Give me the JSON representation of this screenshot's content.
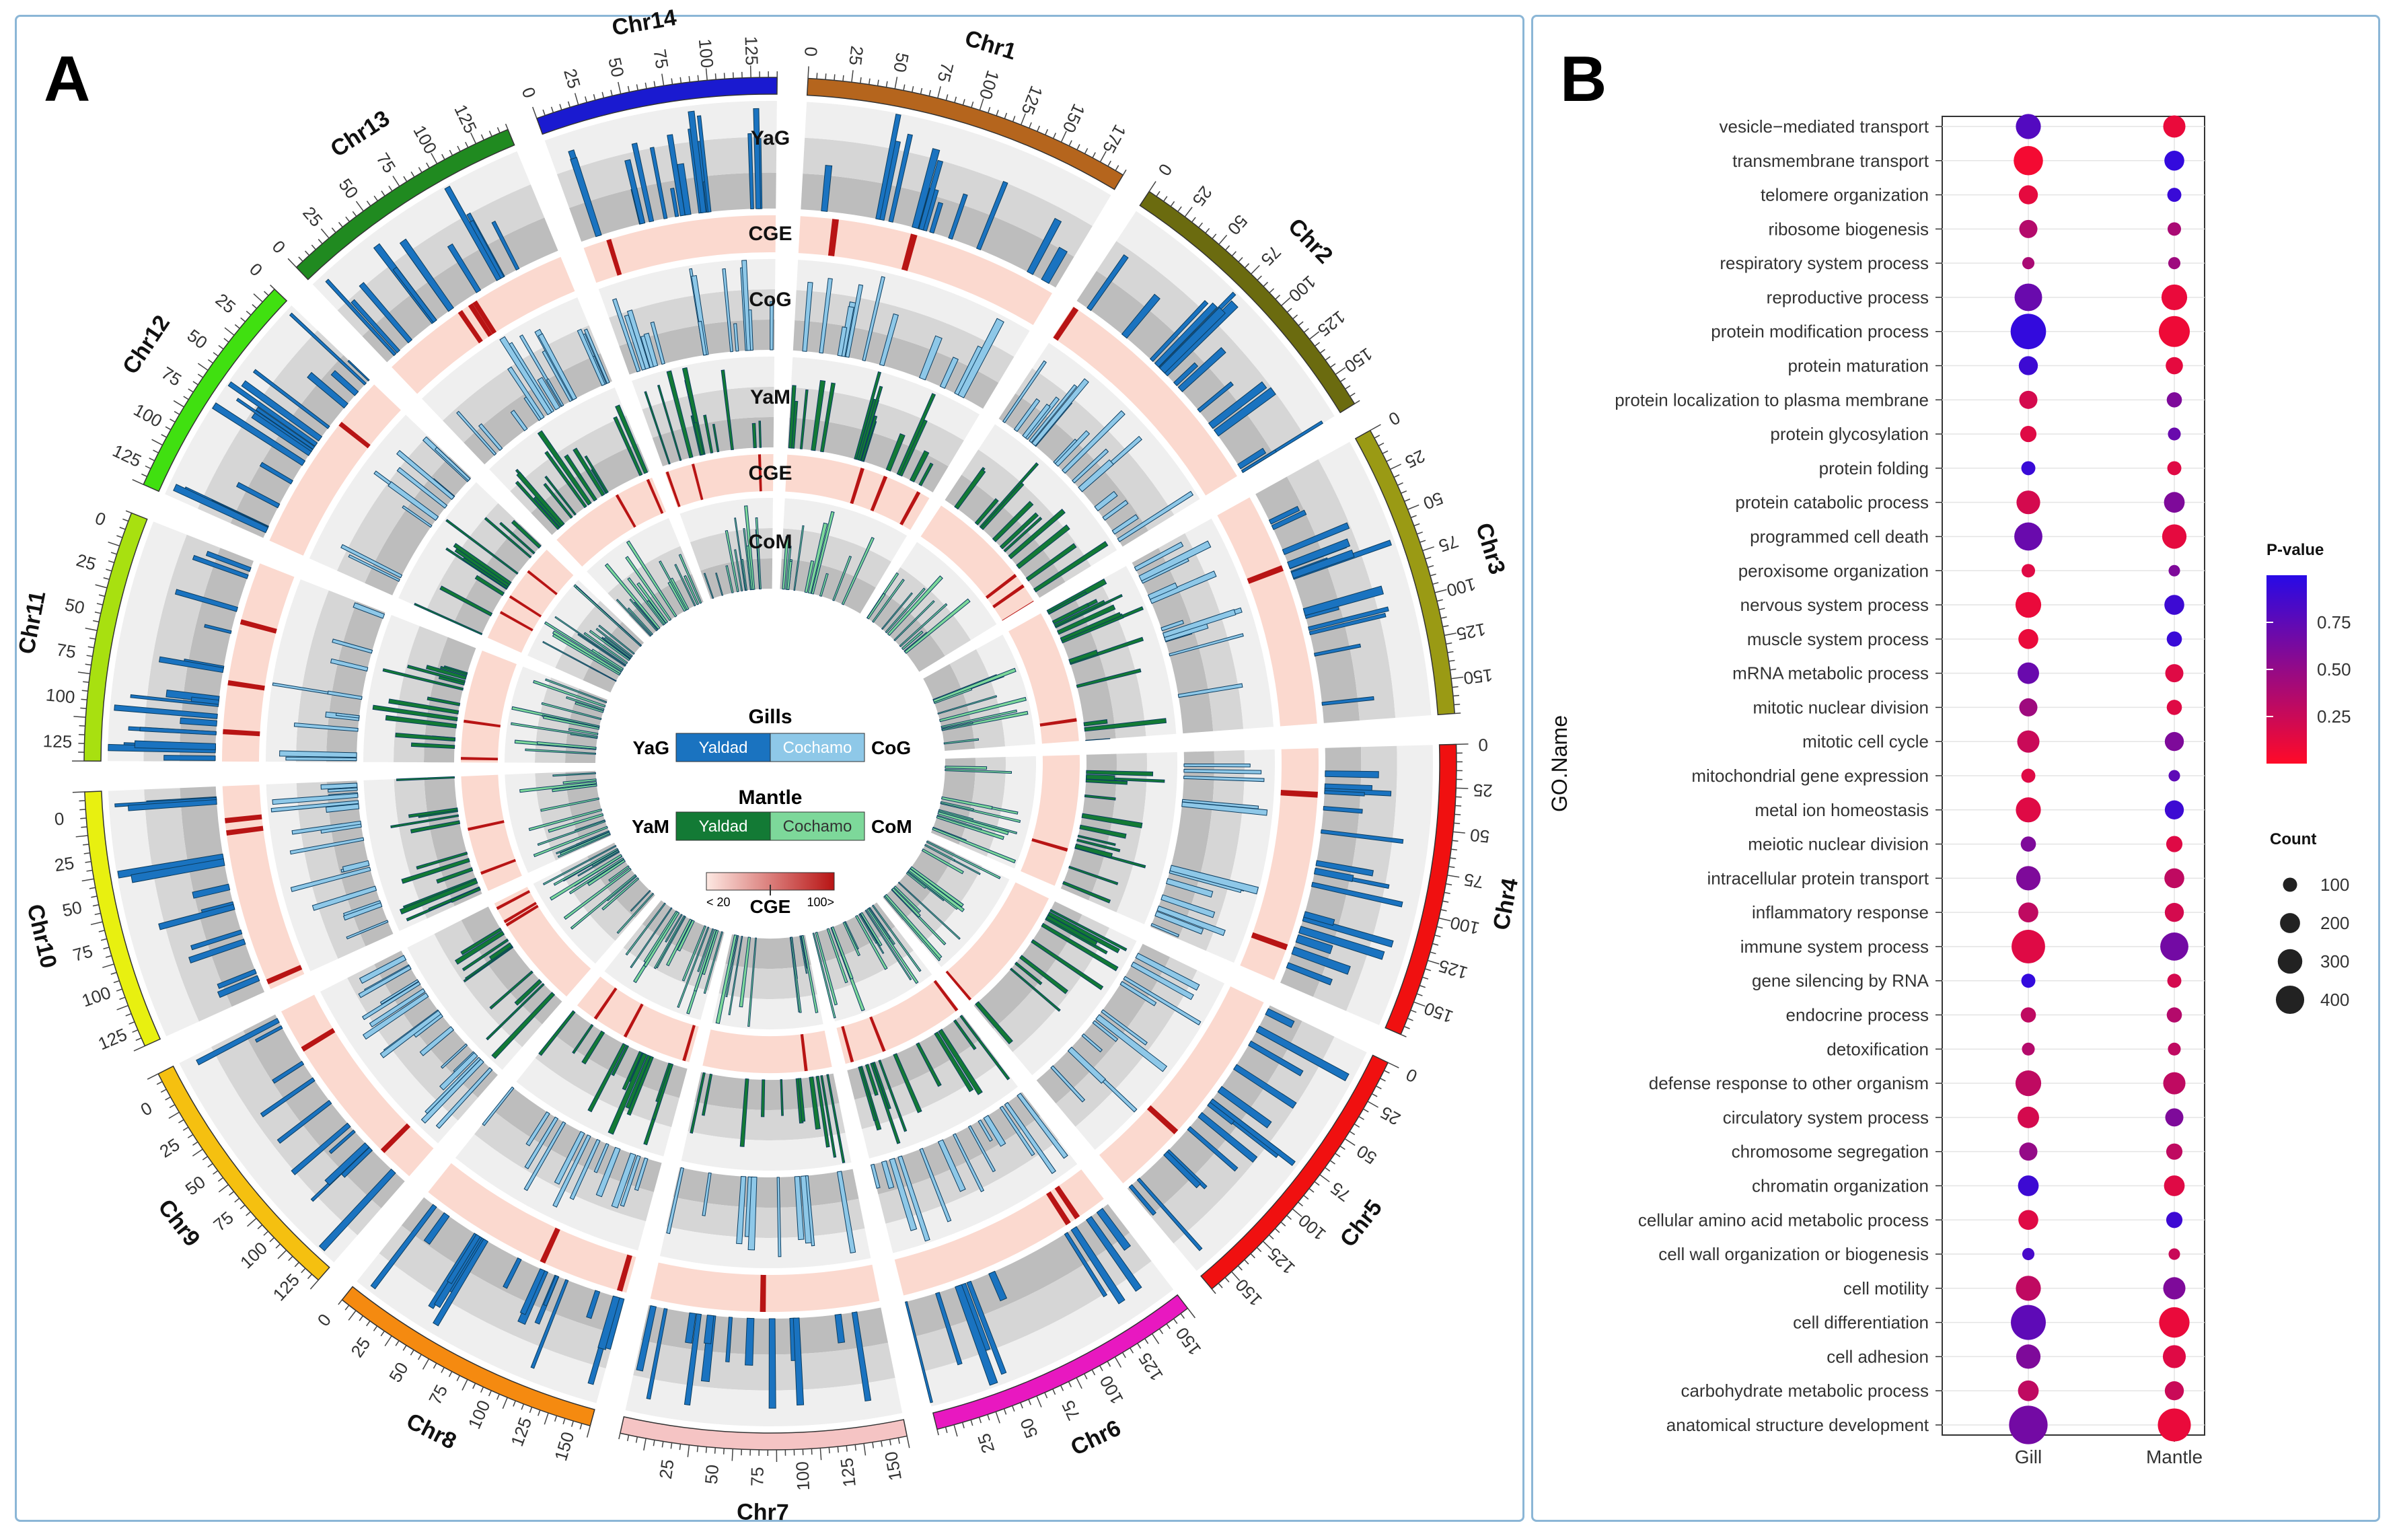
{
  "panels": {
    "a_label": "A",
    "b_label": "B"
  },
  "circos": {
    "chromosomes": [
      {
        "name": "Chr1",
        "length": 190,
        "color": "#b5651d",
        "ticks": [
          0,
          25,
          50,
          75,
          100,
          125,
          150,
          175
        ]
      },
      {
        "name": "Chr2",
        "length": 170,
        "color": "#6b6b0f",
        "ticks": [
          0,
          25,
          50,
          75,
          100,
          125,
          150
        ]
      },
      {
        "name": "Chr3",
        "length": 170,
        "color": "#9a9a14",
        "ticks": [
          0,
          25,
          50,
          75,
          100,
          125,
          150
        ]
      },
      {
        "name": "Chr4",
        "length": 170,
        "color": "#f01010",
        "ticks": [
          0,
          25,
          50,
          75,
          100,
          125,
          150
        ]
      },
      {
        "name": "Chr5",
        "length": 165,
        "color": "#f01010",
        "ticks": [
          0,
          25,
          50,
          75,
          100,
          125,
          150
        ]
      },
      {
        "name": "Chr6",
        "length": 160,
        "color": "#e818c0",
        "ticks": [
          150,
          125,
          100,
          75,
          50,
          25
        ]
      },
      {
        "name": "Chr7",
        "length": 165,
        "color": "#f5c4c4",
        "ticks": [
          150,
          125,
          100,
          75,
          50,
          25
        ]
      },
      {
        "name": "Chr8",
        "length": 160,
        "color": "#f58a10",
        "ticks": [
          150,
          125,
          100,
          75,
          50,
          25,
          0
        ]
      },
      {
        "name": "Chr9",
        "length": 150,
        "color": "#f5c010",
        "ticks": [
          125,
          100,
          75,
          50,
          25,
          0
        ]
      },
      {
        "name": "Chr10",
        "length": 150,
        "color": "#e8f010",
        "ticks": [
          125,
          100,
          75,
          50,
          25,
          0
        ]
      },
      {
        "name": "Chr11",
        "length": 145,
        "color": "#a8e010",
        "ticks": [
          125,
          100,
          75,
          50,
          25,
          0
        ]
      },
      {
        "name": "Chr12",
        "length": 135,
        "color": "#40e010",
        "ticks": [
          125,
          100,
          75,
          50,
          25,
          0
        ]
      },
      {
        "name": "Chr13",
        "length": 145,
        "color": "#208a20",
        "ticks": [
          0,
          25,
          50,
          75,
          100,
          125
        ]
      },
      {
        "name": "Chr14",
        "length": 140,
        "color": "#1a1ad0",
        "ticks": [
          0,
          25,
          50,
          75,
          100,
          125
        ]
      }
    ],
    "track_labels": [
      "YaG",
      "CGE",
      "CoG",
      "YaM",
      "CGE",
      "CoM"
    ],
    "legend": {
      "gills_title": "Gills",
      "mantle_title": "Mantle",
      "yag": "YaG",
      "cog": "CoG",
      "yam": "YaM",
      "com": "CoM",
      "yaldad": "Yaldad",
      "cochamo": "Cochamo",
      "cge_title": "CGE",
      "cge_low": "< 20",
      "cge_high": "100>"
    },
    "colors": {
      "yag": "#1a73c0",
      "cog": "#8ec8e8",
      "yam": "#137a35",
      "com": "#7dd89a",
      "cge_bg": "#fbd9cf",
      "cge_mark": "#b81414",
      "band_dark": "#bdbdbd",
      "band_mid": "#d6d6d6",
      "band_light": "#efefef"
    }
  },
  "chart_data": {
    "type": "scatter",
    "title": "",
    "xlabel": "",
    "ylabel": "GO.Name",
    "x": [
      "Gill",
      "Mantle"
    ],
    "categories": [
      "vesicle−mediated transport",
      "transmembrane transport",
      "telomere organization",
      "ribosome biogenesis",
      "respiratory system process",
      "reproductive process",
      "protein modification process",
      "protein maturation",
      "protein localization to plasma membrane",
      "protein glycosylation",
      "protein folding",
      "protein catabolic process",
      "programmed cell death",
      "peroxisome organization",
      "nervous system process",
      "muscle system process",
      "mRNA metabolic process",
      "mitotic nuclear division",
      "mitotic cell cycle",
      "mitochondrial gene expression",
      "metal ion homeostasis",
      "meiotic nuclear division",
      "intracellular protein transport",
      "inflammatory response",
      "immune system process",
      "gene silencing by RNA",
      "endocrine process",
      "detoxification",
      "defense response to other organism",
      "circulatory system process",
      "chromosome segregation",
      "chromatin organization",
      "cellular amino acid metabolic process",
      "cell wall organization or biogenesis",
      "cell motility",
      "cell differentiation",
      "cell adhesion",
      "carbohydrate metabolic process",
      "anatomical structure development"
    ],
    "series": [
      {
        "name": "Gill",
        "count": [
          190,
          260,
          110,
          100,
          45,
          230,
          380,
          110,
          100,
          80,
          60,
          170,
          240,
          55,
          200,
          120,
          140,
          100,
          150,
          60,
          190,
          70,
          180,
          120,
          340,
          60,
          70,
          50,
          200,
          140,
          100,
          130,
          120,
          45,
          190,
          370,
          180,
          130,
          450
        ],
        "pvalue": [
          0.8,
          0.05,
          0.12,
          0.35,
          0.4,
          0.7,
          0.95,
          0.9,
          0.2,
          0.15,
          0.92,
          0.2,
          0.7,
          0.15,
          0.1,
          0.1,
          0.7,
          0.45,
          0.25,
          0.15,
          0.15,
          0.6,
          0.6,
          0.3,
          0.15,
          0.95,
          0.3,
          0.35,
          0.3,
          0.2,
          0.5,
          0.9,
          0.15,
          0.85,
          0.3,
          0.75,
          0.6,
          0.3,
          0.65
        ]
      },
      {
        "name": "Mantle",
        "count": [
          150,
          120,
          60,
          55,
          45,
          200,
          290,
          90,
          70,
          50,
          60,
          130,
          180,
          40,
          120,
          70,
          100,
          70,
          110,
          40,
          110,
          80,
          120,
          110,
          240,
          60,
          70,
          50,
          150,
          100,
          80,
          130,
          80,
          40,
          150,
          280,
          160,
          110,
          330
        ],
        "pvalue": [
          0.1,
          0.95,
          0.92,
          0.4,
          0.45,
          0.1,
          0.08,
          0.12,
          0.6,
          0.7,
          0.15,
          0.6,
          0.12,
          0.6,
          0.9,
          0.92,
          0.15,
          0.15,
          0.6,
          0.75,
          0.9,
          0.15,
          0.3,
          0.2,
          0.65,
          0.2,
          0.35,
          0.3,
          0.3,
          0.6,
          0.3,
          0.15,
          0.9,
          0.25,
          0.6,
          0.1,
          0.15,
          0.25,
          0.1
        ]
      }
    ],
    "legend_pvalue": {
      "title": "P-value",
      "ticks": [
        0.75,
        0.5,
        0.25
      ],
      "tick_labels": [
        "0.75",
        "0.50",
        "0.25"
      ],
      "range": [
        0,
        1
      ]
    },
    "legend_count": {
      "title": "Count",
      "values": [
        100,
        200,
        300,
        400
      ],
      "labels": [
        "100",
        "200",
        "300",
        "400"
      ]
    }
  }
}
